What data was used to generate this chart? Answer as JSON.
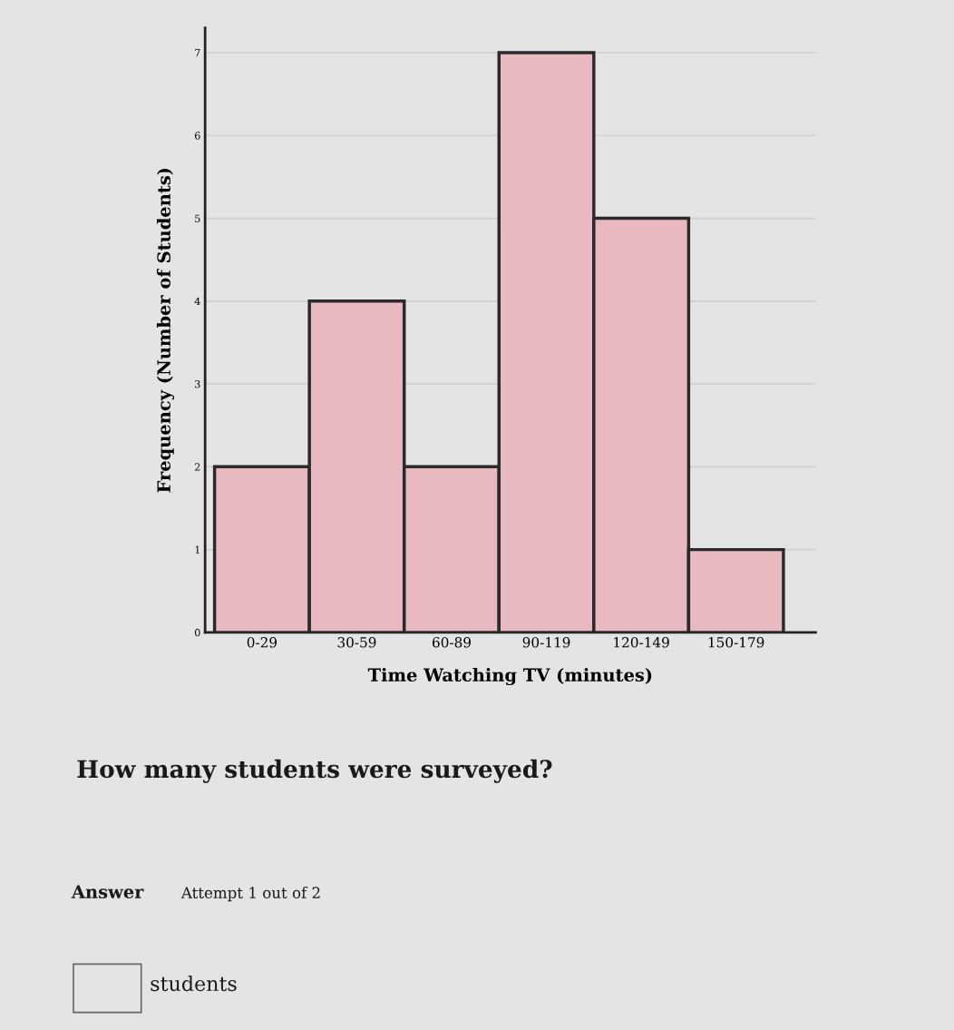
{
  "chart_data": {
    "type": "bar",
    "xlabel": "Time Watching TV (minutes)",
    "ylabel": "Frequency (Number of Students)",
    "categories": [
      "0-29",
      "30-59",
      "60-89",
      "90-119",
      "120-149",
      "150-179"
    ],
    "values": [
      2,
      4,
      2,
      7,
      5,
      1
    ],
    "color": "#e9b9c2",
    "ylim": [
      0,
      7.3
    ],
    "yticks": [
      0,
      1,
      2,
      3,
      4,
      5,
      6,
      7
    ],
    "grid": "y",
    "annotations": [
      "How many students were surveyed?",
      "Answer",
      "Attempt 1 out of 2",
      "students"
    ]
  }
}
